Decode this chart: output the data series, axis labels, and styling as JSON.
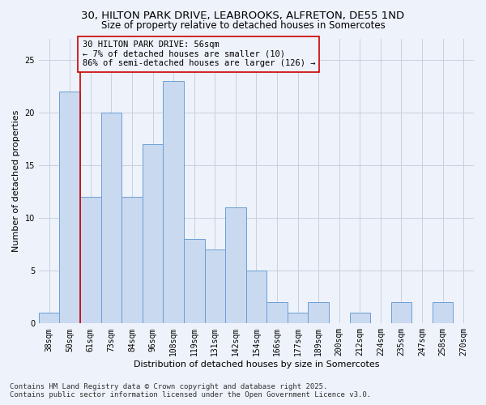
{
  "title_line1": "30, HILTON PARK DRIVE, LEABROOKS, ALFRETON, DE55 1ND",
  "title_line2": "Size of property relative to detached houses in Somercotes",
  "xlabel": "Distribution of detached houses by size in Somercotes",
  "ylabel": "Number of detached properties",
  "footer_line1": "Contains HM Land Registry data © Crown copyright and database right 2025.",
  "footer_line2": "Contains public sector information licensed under the Open Government Licence v3.0.",
  "annotation_line1": "30 HILTON PARK DRIVE: 56sqm",
  "annotation_line2": "← 7% of detached houses are smaller (10)",
  "annotation_line3": "86% of semi-detached houses are larger (126) →",
  "categories": [
    "38sqm",
    "50sqm",
    "61sqm",
    "73sqm",
    "84sqm",
    "96sqm",
    "108sqm",
    "119sqm",
    "131sqm",
    "142sqm",
    "154sqm",
    "166sqm",
    "177sqm",
    "189sqm",
    "200sqm",
    "212sqm",
    "224sqm",
    "235sqm",
    "247sqm",
    "258sqm",
    "270sqm"
  ],
  "values": [
    1,
    22,
    12,
    20,
    12,
    17,
    23,
    8,
    7,
    11,
    5,
    2,
    1,
    2,
    0,
    1,
    0,
    2,
    0,
    2,
    0
  ],
  "bar_color": "#c9d9f0",
  "bar_edge_color": "#6b9fd4",
  "vline_color": "#cc0000",
  "annotation_box_color": "#cc0000",
  "background_color": "#eef2fa",
  "ylim": [
    0,
    27
  ],
  "yticks": [
    0,
    5,
    10,
    15,
    20,
    25
  ],
  "grid_color": "#c8cfe0",
  "title_fontsize": 9.5,
  "subtitle_fontsize": 8.5,
  "axis_label_fontsize": 8,
  "tick_fontsize": 7,
  "footer_fontsize": 6.5,
  "annotation_fontsize": 7.5
}
